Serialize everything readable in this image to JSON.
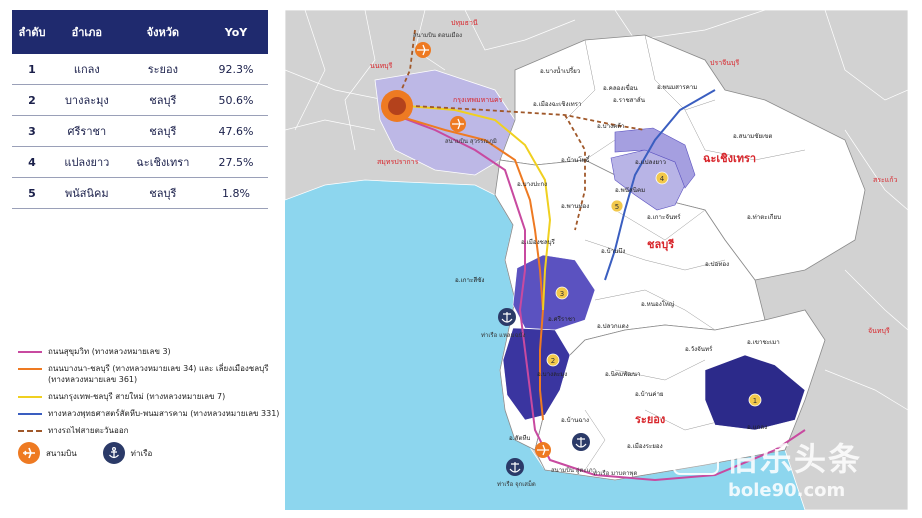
{
  "table": {
    "headers": [
      "ลำดับ",
      "อำเภอ",
      "จังหวัด",
      "YoY"
    ],
    "rows": [
      {
        "rank": "1",
        "district": "แกลง",
        "province": "ระยอง",
        "yoy": "92.3%"
      },
      {
        "rank": "2",
        "district": "บางละมุง",
        "province": "ชลบุรี",
        "yoy": "50.6%"
      },
      {
        "rank": "3",
        "district": "ศรีราชา",
        "province": "ชลบุรี",
        "yoy": "47.6%"
      },
      {
        "rank": "4",
        "district": "แปลงยาว",
        "province": "ฉะเชิงเทรา",
        "yoy": "27.5%"
      },
      {
        "rank": "5",
        "district": "พนัสนิคม",
        "province": "ชลบุรี",
        "yoy": "1.8%"
      }
    ]
  },
  "legend": {
    "items": [
      {
        "text": "ถนนสุขุมวิท (ทางหลวงหมายเลข 3)",
        "color": "#c84aa0",
        "dashed": false
      },
      {
        "text": "ถนนบางนา-ชลบุรี (ทางหลวงหมายเลข 34) และ เลี่ยงเมืองชลบุรี (ทางหลวงหมายเลข 361)",
        "color": "#ee7a22",
        "dashed": false
      },
      {
        "text": "ถนนกรุงเทพ-ชลบุรี สายใหม่ (ทางหลวงหมายเลข 7)",
        "color": "#f0d020",
        "dashed": false
      },
      {
        "text": "ทางหลวงพุทธศาสตร์สัตหีบ-พนมสารคาม (ทางหลวงหมายเลข 331)",
        "color": "#3a5ec0",
        "dashed": false
      },
      {
        "text": "ทางรถไฟสายตะวันออก",
        "color": "#a0582a",
        "dashed": true
      }
    ],
    "airport_label": "สนามบิน",
    "port_label": "ท่าเรือ"
  },
  "map": {
    "provinces": {
      "chachoengsao": "ฉะเชิงเทรา",
      "chonburi": "ชลบุรี",
      "rayong": "ระยอง",
      "pathum_thani": "ปทุมธานี",
      "nonthaburi": "นนทบุรี",
      "bangkok": "กรุงเทพมหานคร",
      "samut_prakan": "สมุทรปราการ",
      "prachinburi": "ปราจีนบุรี",
      "sa_kaeo": "สระแก้ว",
      "chanthaburi": "จันทบุรี"
    },
    "districts": [
      "อ.บางน้ำเปรี้ยว",
      "อ.คลองเขื่อน",
      "อ.พนมสารคาม",
      "อ.เมืองฉะเชิงเทรา",
      "อ.ราชสาส์น",
      "อ.บางคล้า",
      "อ.สนามชัยเขต",
      "อ.แปลงยาว",
      "อ.บ้านโพธิ์",
      "อ.บางปะกง",
      "อ.พนัสนิคม",
      "อ.พานทอง",
      "อ.เกาะจันทร์",
      "อ.ท่าตะเกียบ",
      "อ.เมืองชลบุรี",
      "อ.บ้านบึง",
      "อ.บ่อทอง",
      "อ.เกาะสีชัง",
      "อ.หนองใหญ่",
      "อ.ศรีราชา",
      "อ.ปลวกแดง",
      "อ.วังจันทร์",
      "อ.เขาชะเมา",
      "อ.บางละมุง",
      "อ.นิคมพัฒนา",
      "อ.บ้านค่าย",
      "อ.แกลง",
      "อ.บ้านฉาง",
      "อ.สัตหีบ",
      "อ.เมืองระยอง"
    ],
    "airport_labels": {
      "don_mueang": "สนามบิน ดอนเมือง",
      "suvarnabhumi": "สนามบิน สุวรรณภูมิ",
      "u_tapao": "สนามบิน อู่ตะเภา"
    },
    "port_labels": {
      "laem_chabang": "ท่าเรือ แหลมฉบัง",
      "sattahip": "ท่าเรือ จุกเสม็ด",
      "map_ta_phut": "ท่าเรือ มาบตาพุด"
    },
    "rank_badges": [
      "1",
      "2",
      "3",
      "4",
      "5"
    ],
    "colors": {
      "sea": "#8dd6ee",
      "land_outside": "#d2d2d2",
      "land_eec": "#ffffff",
      "rank_dark": "#2c2a8a",
      "rank_mid": "#5b52c0",
      "rank_light": "#b8b4e6",
      "bangkok_area": "#bdb8e6",
      "badge": "#f2c84b",
      "province_label": "#d8262c"
    }
  },
  "watermark": {
    "title": "伯乐头条",
    "url": "bole90.com",
    "badge": "Bole"
  }
}
